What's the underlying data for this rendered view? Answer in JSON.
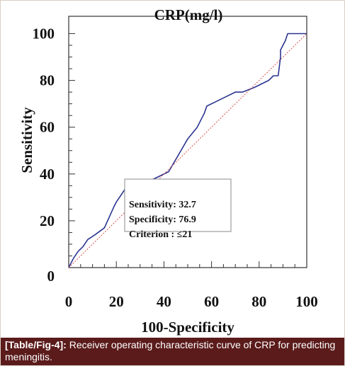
{
  "chart_data": {
    "type": "line",
    "title": "CRP(mg/l)",
    "xlabel": "100-Specificity",
    "ylabel": "Sensitivity",
    "xlim": [
      0,
      100
    ],
    "ylim": [
      0,
      100
    ],
    "x_ticks": [
      "0",
      "20",
      "40",
      "60",
      "80",
      "100"
    ],
    "y_ticks": [
      "0",
      "20",
      "40",
      "60",
      "80",
      "100"
    ],
    "grid": false,
    "legend": "none",
    "series": [
      {
        "style": "solid",
        "color": "#2b3590",
        "x": [
          0,
          2,
          4,
          6,
          8,
          11,
          15,
          19,
          20,
          24,
          30,
          36,
          42,
          46,
          50,
          54,
          57,
          58,
          62,
          66,
          70,
          73,
          78,
          82,
          84,
          86,
          88,
          89,
          89,
          91,
          92,
          100
        ],
        "y": [
          0,
          4,
          7,
          9,
          12,
          14,
          17,
          26,
          28,
          34,
          36,
          38,
          41,
          48,
          55,
          60,
          66,
          69,
          71,
          73,
          75,
          75,
          77,
          79,
          80,
          82,
          82,
          90,
          93,
          97,
          100,
          100
        ]
      },
      {
        "style": "dotted",
        "color": "#d9534f",
        "x": [
          0,
          100
        ],
        "y": [
          0,
          100
        ]
      }
    ],
    "annotation": {
      "sensitivity": "Sensitivity: 32.7",
      "specificity": "Specificity: 76.9",
      "criterion": "Criterion : ≤21"
    }
  },
  "caption": {
    "ref": "[Table/Fig-4]:",
    "text": " Receiver operating characteristic curve of CRP for predicting meningitis."
  }
}
